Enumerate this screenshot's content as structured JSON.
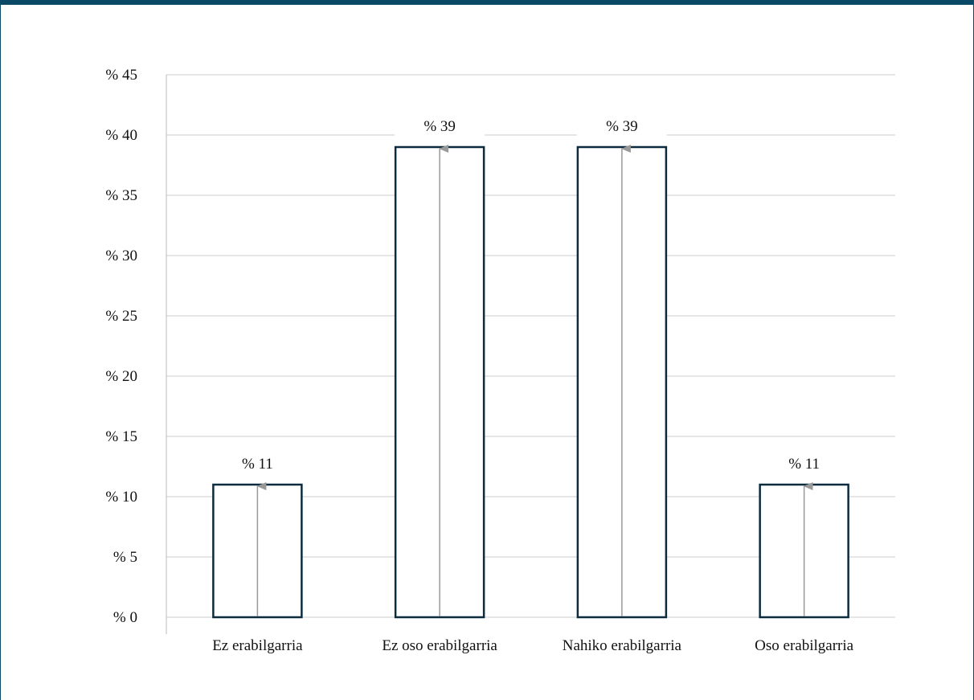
{
  "chart_data": {
    "type": "bar",
    "categories": [
      "Ez erabilgarria",
      "Ez oso erabilgarria",
      "Nahiko erabilgarria",
      "Oso erabilgarria"
    ],
    "values": [
      11,
      39,
      39,
      11
    ],
    "data_labels": [
      "% 11",
      "% 39",
      "% 39",
      "% 11"
    ],
    "yticks": [
      0,
      5,
      10,
      15,
      20,
      25,
      30,
      35,
      40,
      45
    ],
    "ytick_labels": [
      "% 0",
      "% 5",
      "% 10",
      "% 15",
      "% 20",
      "% 25",
      "% 30",
      "% 35",
      "% 40",
      "% 45"
    ],
    "ylim": [
      0,
      45
    ],
    "title": "",
    "xlabel": "",
    "ylabel": "",
    "grid": true,
    "legend": "none",
    "colors": {
      "frame": "#0b4a66",
      "bar_outline": "#0d2b3e",
      "bar_fill": "#ffffff",
      "gridline": "#cccccc",
      "arrow": "#999999",
      "text": "#111111"
    }
  }
}
